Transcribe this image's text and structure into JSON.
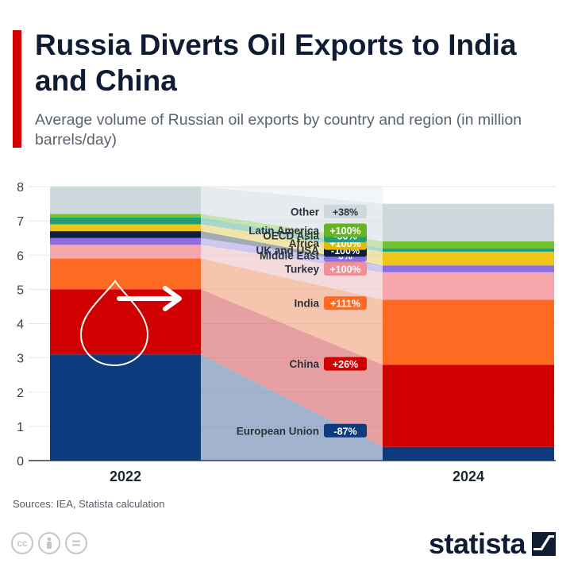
{
  "header": {
    "title": "Russia Diverts Oil Exports to India and China",
    "subtitle": "Average volume of Russian oil exports by country and region (in million barrels/day)"
  },
  "footer": {
    "source": "Sources: IEA, Statista calculation",
    "brand": "statista",
    "license_icons": [
      "cc-icon",
      "attribution-icon",
      "no-derivatives-icon"
    ]
  },
  "colors": {
    "accent": "#d50000",
    "title": "#0f1c33"
  },
  "chart_data": {
    "type": "bar",
    "stacked": true,
    "categories": [
      "2022",
      "2024"
    ],
    "ylim": [
      0,
      8
    ],
    "yticks": [
      0,
      1,
      2,
      3,
      4,
      5,
      6,
      7,
      8
    ],
    "grid": true,
    "series": [
      {
        "name": "European Union",
        "change": "-87%",
        "values": [
          3.1,
          0.4
        ],
        "color": "#0e3a7e",
        "badge": "#0e3a7e"
      },
      {
        "name": "China",
        "change": "+26%",
        "values": [
          1.9,
          2.4
        ],
        "color": "#d00000",
        "badge": "#d00000"
      },
      {
        "name": "India",
        "change": "+111%",
        "values": [
          0.9,
          1.9
        ],
        "color": "#ff6a23",
        "badge": "#ff6a23"
      },
      {
        "name": "Turkey",
        "change": "+100%",
        "values": [
          0.4,
          0.8
        ],
        "color": "#f7a7ab",
        "badge": "#f28e95"
      },
      {
        "name": "Middle East",
        "change": "0%",
        "values": [
          0.2,
          0.2
        ],
        "color": "#8c6fe0",
        "badge": "#8c6fe0"
      },
      {
        "name": "UK and USA",
        "change": "-100%",
        "values": [
          0.2,
          0.0
        ],
        "color": "#0d1f3c",
        "badge": "#0d1f3c"
      },
      {
        "name": "Africa",
        "change": "+100%",
        "values": [
          0.2,
          0.4
        ],
        "color": "#f0c419",
        "badge": "#e6b800"
      },
      {
        "name": "OECD Asia",
        "change": "-50%",
        "values": [
          0.2,
          0.1
        ],
        "color": "#1f9e77",
        "badge": "#1f9e77"
      },
      {
        "name": "Latin America",
        "change": "+100%",
        "values": [
          0.1,
          0.2
        ],
        "color": "#73c22e",
        "badge": "#64b51f"
      },
      {
        "name": "Other",
        "change": "+38%",
        "values": [
          0.8,
          1.1
        ],
        "color": "#cfd8dc",
        "badge": "#cfd8dc"
      }
    ]
  }
}
